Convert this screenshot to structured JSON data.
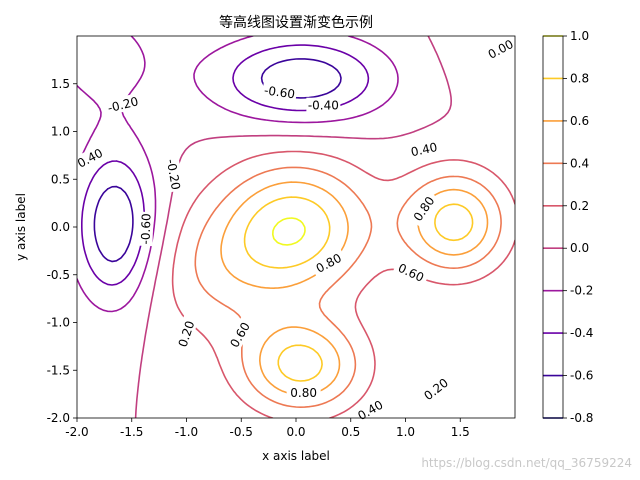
{
  "chart_data": {
    "type": "contour",
    "title": "等高线图设置渐变色示例",
    "xlabel": "x axis label",
    "ylabel": "y axis label",
    "xlim": [
      -2.0,
      2.0
    ],
    "ylim": [
      -2.0,
      2.0
    ],
    "x_ticks": [
      "-2.0",
      "-1.5",
      "-1.0",
      "-0.5",
      "0.0",
      "0.5",
      "1.0",
      "1.5"
    ],
    "x_tick_values": [
      -2.0,
      -1.5,
      -1.0,
      -0.5,
      0.0,
      0.5,
      1.0,
      1.5
    ],
    "y_ticks": [
      "-2.0",
      "-1.5",
      "-1.0",
      "-0.5",
      "0.0",
      "0.5",
      "1.0",
      "1.5"
    ],
    "y_tick_values": [
      -2.0,
      -1.5,
      -1.0,
      -0.5,
      0.0,
      0.5,
      1.0,
      1.5
    ],
    "colormap": "plasma",
    "levels": [
      -0.8,
      -0.6,
      -0.4,
      -0.2,
      0.0,
      0.2,
      0.4,
      0.6,
      0.8,
      1.0
    ],
    "level_colors": [
      "#0d0887",
      "#3a049a",
      "#6a00a8",
      "#9c179e",
      "#c13f80",
      "#d8576b",
      "#ed7953",
      "#fb9f3a",
      "#fdca26",
      "#f0f921"
    ],
    "colorbar": {
      "ticks": [
        "-0.8",
        "-0.6",
        "-0.4",
        "-0.2",
        "0.0",
        "0.2",
        "0.4",
        "0.6",
        "0.8",
        "1.0"
      ],
      "tick_values": [
        -0.8,
        -0.6,
        -0.4,
        -0.2,
        0.0,
        0.2,
        0.4,
        0.6,
        0.8,
        1.0
      ]
    },
    "contour_labels": [
      {
        "text": "0.00",
        "x": 1.87,
        "y": 1.86,
        "angle": -28
      },
      {
        "text": "-0.20",
        "x": -1.58,
        "y": 1.28,
        "angle": -14
      },
      {
        "text": "-0.60",
        "x": -0.15,
        "y": 1.41,
        "angle": 8
      },
      {
        "text": "-0.40",
        "x": 0.25,
        "y": 1.27,
        "angle": 0
      },
      {
        "text": "0.40",
        "x": -1.88,
        "y": 0.72,
        "angle": -28
      },
      {
        "text": "-0.20",
        "x": -1.12,
        "y": 0.55,
        "angle": 80
      },
      {
        "text": "0.40",
        "x": 1.17,
        "y": 0.81,
        "angle": -12
      },
      {
        "text": "-0.60",
        "x": -1.37,
        "y": -0.02,
        "angle": -88
      },
      {
        "text": "0.80",
        "x": 1.17,
        "y": 0.19,
        "angle": -55
      },
      {
        "text": "0.80",
        "x": 0.3,
        "y": -0.38,
        "angle": -28
      },
      {
        "text": "0.60",
        "x": 1.05,
        "y": -0.48,
        "angle": 25
      },
      {
        "text": "0.20",
        "x": -1.0,
        "y": -1.12,
        "angle": -72
      },
      {
        "text": "0.60",
        "x": -0.51,
        "y": -1.13,
        "angle": -60
      },
      {
        "text": "0.80",
        "x": 0.07,
        "y": -1.74,
        "angle": 0
      },
      {
        "text": "0.40",
        "x": 0.68,
        "y": -1.92,
        "angle": -30
      },
      {
        "text": "0.20",
        "x": 1.28,
        "y": -1.7,
        "angle": -38
      }
    ]
  },
  "watermark": "https://blog.csdn.net/qq_36759224"
}
